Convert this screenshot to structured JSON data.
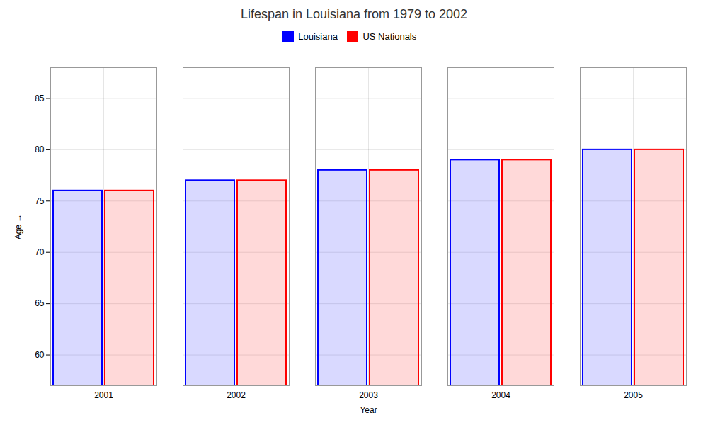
{
  "chart_data": {
    "type": "bar",
    "title": "Lifespan in Louisiana from 1979 to 2002",
    "xlabel": "Year",
    "ylabel": "Age",
    "categories": [
      "2001",
      "2002",
      "2003",
      "2004",
      "2005"
    ],
    "series": [
      {
        "name": "Louisiana",
        "color": "#0000ff",
        "values": [
          76,
          77,
          78,
          79,
          80
        ]
      },
      {
        "name": "US Nationals",
        "color": "#ff0000",
        "values": [
          76,
          77,
          78,
          79,
          80
        ]
      }
    ],
    "ylim": [
      57,
      88
    ],
    "yticks": [
      60,
      65,
      70,
      75,
      80,
      85
    ],
    "grid": true,
    "legend": "top"
  }
}
